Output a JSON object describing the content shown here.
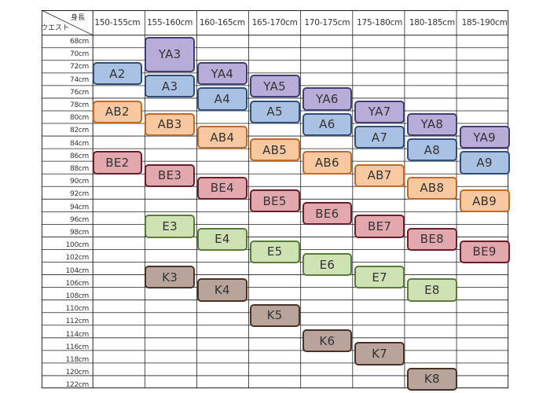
{
  "chart_data": {
    "type": "table",
    "corner": {
      "top_label": "身長",
      "bottom_label": "ウエスト"
    },
    "columns": [
      "150-155cm",
      "155-160cm",
      "160-165cm",
      "165-170cm",
      "170-175cm",
      "175-180cm",
      "180-185cm",
      "185-190cm"
    ],
    "rows": [
      "68cm",
      "70cm",
      "72cm",
      "74cm",
      "76cm",
      "78cm",
      "80cm",
      "82cm",
      "84cm",
      "86cm",
      "88cm",
      "90cm",
      "92cm",
      "94cm",
      "96cm",
      "98cm",
      "100cm",
      "102cm",
      "104cm",
      "106cm",
      "108cm",
      "110cm",
      "112cm",
      "114cm",
      "116cm",
      "118cm",
      "120cm",
      "122cm"
    ],
    "series": [
      {
        "name": "YA",
        "color": "#b8acd8",
        "border": "#3f3f74"
      },
      {
        "name": "A",
        "color": "#a9c2e3",
        "border": "#2f4f7a"
      },
      {
        "name": "AB",
        "color": "#f8c8a0",
        "border": "#c06a2a"
      },
      {
        "name": "BE",
        "color": "#e2a8ae",
        "border": "#6a1f28"
      },
      {
        "name": "E",
        "color": "#cfe2b4",
        "border": "#5a7a3a"
      },
      {
        "name": "K",
        "color": "#b8a49a",
        "border": "#4a3226"
      }
    ],
    "sizes": [
      {
        "label": "A2",
        "series": "A",
        "col": 0,
        "waist_from": "72cm",
        "waist_to": "74cm"
      },
      {
        "label": "AB2",
        "series": "AB",
        "col": 0,
        "waist_from": "78cm",
        "waist_to": "80cm"
      },
      {
        "label": "BE2",
        "series": "BE",
        "col": 0,
        "waist_from": "86cm",
        "waist_to": "88cm"
      },
      {
        "label": "YA3",
        "series": "YA",
        "col": 1,
        "waist_from": "68cm",
        "waist_to": "72cm"
      },
      {
        "label": "A3",
        "series": "A",
        "col": 1,
        "waist_from": "74cm",
        "waist_to": "76cm"
      },
      {
        "label": "AB3",
        "series": "AB",
        "col": 1,
        "waist_from": "80cm",
        "waist_to": "82cm"
      },
      {
        "label": "BE3",
        "series": "BE",
        "col": 1,
        "waist_from": "88cm",
        "waist_to": "90cm"
      },
      {
        "label": "E3",
        "series": "E",
        "col": 1,
        "waist_from": "96cm",
        "waist_to": "98cm"
      },
      {
        "label": "K3",
        "series": "K",
        "col": 1,
        "waist_from": "104cm",
        "waist_to": "106cm"
      },
      {
        "label": "YA4",
        "series": "YA",
        "col": 2,
        "waist_from": "72cm",
        "waist_to": "74cm"
      },
      {
        "label": "A4",
        "series": "A",
        "col": 2,
        "waist_from": "76cm",
        "waist_to": "78cm"
      },
      {
        "label": "AB4",
        "series": "AB",
        "col": 2,
        "waist_from": "82cm",
        "waist_to": "84cm"
      },
      {
        "label": "BE4",
        "series": "BE",
        "col": 2,
        "waist_from": "90cm",
        "waist_to": "92cm"
      },
      {
        "label": "E4",
        "series": "E",
        "col": 2,
        "waist_from": "98cm",
        "waist_to": "100cm"
      },
      {
        "label": "K4",
        "series": "K",
        "col": 2,
        "waist_from": "106cm",
        "waist_to": "108cm"
      },
      {
        "label": "YA5",
        "series": "YA",
        "col": 3,
        "waist_from": "74cm",
        "waist_to": "76cm"
      },
      {
        "label": "A5",
        "series": "A",
        "col": 3,
        "waist_from": "78cm",
        "waist_to": "80cm"
      },
      {
        "label": "AB5",
        "series": "AB",
        "col": 3,
        "waist_from": "84cm",
        "waist_to": "86cm"
      },
      {
        "label": "BE5",
        "series": "BE",
        "col": 3,
        "waist_from": "92cm",
        "waist_to": "94cm"
      },
      {
        "label": "E5",
        "series": "E",
        "col": 3,
        "waist_from": "100cm",
        "waist_to": "102cm"
      },
      {
        "label": "K5",
        "series": "K",
        "col": 3,
        "waist_from": "110cm",
        "waist_to": "112cm"
      },
      {
        "label": "YA6",
        "series": "YA",
        "col": 4,
        "waist_from": "76cm",
        "waist_to": "78cm"
      },
      {
        "label": "A6",
        "series": "A",
        "col": 4,
        "waist_from": "80cm",
        "waist_to": "82cm"
      },
      {
        "label": "AB6",
        "series": "AB",
        "col": 4,
        "waist_from": "86cm",
        "waist_to": "88cm"
      },
      {
        "label": "BE6",
        "series": "BE",
        "col": 4,
        "waist_from": "94cm",
        "waist_to": "96cm"
      },
      {
        "label": "E6",
        "series": "E",
        "col": 4,
        "waist_from": "102cm",
        "waist_to": "104cm"
      },
      {
        "label": "K6",
        "series": "K",
        "col": 4,
        "waist_from": "114cm",
        "waist_to": "116cm"
      },
      {
        "label": "YA7",
        "series": "YA",
        "col": 5,
        "waist_from": "78cm",
        "waist_to": "80cm"
      },
      {
        "label": "A7",
        "series": "A",
        "col": 5,
        "waist_from": "82cm",
        "waist_to": "84cm"
      },
      {
        "label": "AB7",
        "series": "AB",
        "col": 5,
        "waist_from": "88cm",
        "waist_to": "90cm"
      },
      {
        "label": "BE7",
        "series": "BE",
        "col": 5,
        "waist_from": "96cm",
        "waist_to": "98cm"
      },
      {
        "label": "E7",
        "series": "E",
        "col": 5,
        "waist_from": "104cm",
        "waist_to": "106cm"
      },
      {
        "label": "K7",
        "series": "K",
        "col": 5,
        "waist_from": "116cm",
        "waist_to": "118cm"
      },
      {
        "label": "YA8",
        "series": "YA",
        "col": 6,
        "waist_from": "80cm",
        "waist_to": "82cm"
      },
      {
        "label": "A8",
        "series": "A",
        "col": 6,
        "waist_from": "84cm",
        "waist_to": "86cm"
      },
      {
        "label": "AB8",
        "series": "AB",
        "col": 6,
        "waist_from": "90cm",
        "waist_to": "92cm"
      },
      {
        "label": "BE8",
        "series": "BE",
        "col": 6,
        "waist_from": "98cm",
        "waist_to": "100cm"
      },
      {
        "label": "E8",
        "series": "E",
        "col": 6,
        "waist_from": "106cm",
        "waist_to": "108cm"
      },
      {
        "label": "K8",
        "series": "K",
        "col": 6,
        "waist_from": "120cm",
        "waist_to": "122cm"
      },
      {
        "label": "YA9",
        "series": "YA",
        "col": 7,
        "waist_from": "82cm",
        "waist_to": "84cm"
      },
      {
        "label": "A9",
        "series": "A",
        "col": 7,
        "waist_from": "86cm",
        "waist_to": "88cm"
      },
      {
        "label": "AB9",
        "series": "AB",
        "col": 7,
        "waist_from": "92cm",
        "waist_to": "94cm"
      },
      {
        "label": "BE9",
        "series": "BE",
        "col": 7,
        "waist_from": "100cm",
        "waist_to": "102cm"
      }
    ]
  }
}
